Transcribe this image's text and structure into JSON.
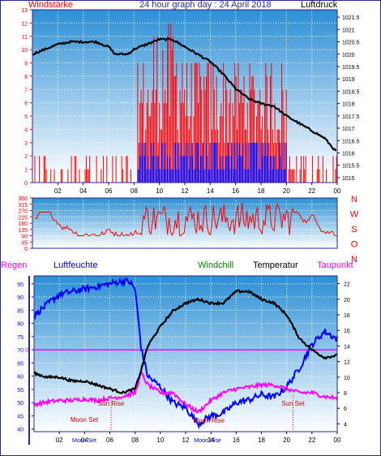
{
  "header": {
    "left": "Windstärke",
    "title": "24 hour graph day : 24 April 2018",
    "right": "Luftdruck"
  },
  "colors": {
    "wind_speed": "#ff0000",
    "wind_avg": "#0000ff",
    "pressure": "#000000",
    "direction": "#ff0000",
    "humidity": "#0000ff",
    "windchill": "#008000",
    "temperature": "#000000",
    "dewpoint": "#ff00ff",
    "rain": "#ff00ff",
    "frame": "#2a2a8a",
    "sky_top": "#2b8fd6",
    "sky_bottom": "#ffffff"
  },
  "mid_labels": {
    "compass": [
      "N",
      "W",
      "S",
      "O",
      "N"
    ]
  },
  "bottom_header": {
    "rain": "Regen",
    "humidity": "Luftfeuchte",
    "windchill": "Windchill",
    "temperature": "Temperatur",
    "dewpoint": "Taupunkt"
  },
  "annotations": {
    "sun_rise": "Sun Rise",
    "sun_set": "Sun Set",
    "moon_set": "Moon Set",
    "moon_rise": "Moon Rise",
    "moon_set_axis": "Moon Set",
    "moon_rise_axis": "Moon Rise"
  },
  "chart_data": [
    {
      "type": "line",
      "title": "24 hour graph day : 24 April 2018",
      "x_ticks": [
        "02",
        "04",
        "06",
        "08",
        "10",
        "12",
        "14",
        "16",
        "18",
        "20",
        "22",
        "00"
      ],
      "y_left": {
        "label": "Windstärke",
        "ticks": [
          0,
          1,
          2,
          3,
          4,
          5,
          6,
          7,
          8,
          9,
          10,
          11,
          12,
          13
        ],
        "lim": [
          0,
          13
        ]
      },
      "y_right": {
        "label": "Luftdruck",
        "ticks": [
          1015,
          1015.5,
          1016,
          1016.5,
          1017,
          1017.5,
          1018,
          1018.5,
          1019,
          1019.5,
          1020,
          1020.5,
          1021,
          1021.5
        ],
        "lim": [
          1014.8,
          1021.8
        ]
      },
      "series": [
        {
          "name": "Luftdruck",
          "axis": "right",
          "x": [
            0,
            1,
            2,
            3,
            4,
            5,
            6,
            6.5,
            7,
            7.5,
            8,
            9,
            10,
            11,
            12,
            13,
            14,
            15,
            16,
            17,
            18,
            19,
            20,
            21,
            22,
            23,
            24
          ],
          "y": [
            1020,
            1020.2,
            1020.4,
            1020.5,
            1020.5,
            1020.5,
            1020.3,
            1020,
            1020,
            1020,
            1020.2,
            1020.4,
            1020.6,
            1020.6,
            1020.3,
            1020,
            1019.7,
            1019.2,
            1018.6,
            1018.2,
            1018,
            1017.9,
            1017.5,
            1017.2,
            1016.9,
            1016.6,
            1016
          ]
        }
      ],
      "wind_activity_hours": [
        8.5,
        20
      ]
    },
    {
      "type": "scatter",
      "title": "",
      "y_left": {
        "ticks": [
          0,
          45,
          90,
          135,
          180,
          225,
          270,
          315,
          360
        ],
        "lim": [
          0,
          360
        ]
      },
      "y_right": {
        "ticks": [
          "N",
          "W",
          "S",
          "O",
          "N"
        ]
      },
      "series": [
        {
          "name": "Windrichtung",
          "typical_range": [
            90,
            300
          ]
        }
      ]
    },
    {
      "type": "line",
      "title": "",
      "x_ticks": [
        "02",
        "04",
        "06",
        "08",
        "10",
        "12",
        "14",
        "16",
        "18",
        "20",
        "22",
        "00"
      ],
      "y_left": {
        "label": "Luftfeuchte",
        "ticks": [
          40,
          45,
          50,
          55,
          60,
          65,
          70,
          75,
          80,
          85,
          90,
          95
        ],
        "lim": [
          39,
          98
        ]
      },
      "y_rain": {
        "label": "Regen",
        "ticks": [
          0
        ]
      },
      "y_right": {
        "label": "Temperatur",
        "ticks": [
          4,
          6,
          8,
          10,
          12,
          14,
          16,
          18,
          20,
          22
        ],
        "lim": [
          3,
          23
        ]
      },
      "series": [
        {
          "name": "Luftfeuchte",
          "axis": "left",
          "x": [
            0,
            1,
            2,
            3,
            4,
            5,
            6,
            7,
            7.5,
            8,
            8.5,
            9,
            10,
            11,
            12,
            13,
            14,
            15,
            16,
            17,
            18,
            19,
            20,
            21,
            22,
            23,
            24
          ],
          "y": [
            83,
            87,
            91,
            92,
            93,
            94,
            95,
            96,
            96,
            93,
            70,
            60,
            56,
            50,
            48,
            42,
            45,
            46,
            50,
            51,
            53,
            52,
            56,
            63,
            72,
            77,
            74
          ]
        },
        {
          "name": "Temperatur",
          "axis": "right",
          "x": [
            0,
            1,
            2,
            3,
            4,
            5,
            6,
            7,
            8,
            8.5,
            9,
            10,
            11,
            12,
            13,
            14,
            15,
            16,
            17,
            18,
            19,
            20,
            21,
            22,
            23,
            24
          ],
          "y": [
            10.5,
            10,
            10,
            9.5,
            9.5,
            9,
            8.5,
            8,
            8.5,
            11,
            14,
            16.5,
            18.5,
            19.5,
            20,
            19.5,
            19.5,
            21,
            21,
            20,
            19.5,
            18,
            15,
            13.5,
            12.5,
            12.8
          ]
        },
        {
          "name": "Taupunkt",
          "axis": "right",
          "x": [
            0,
            1,
            2,
            3,
            4,
            5,
            6,
            7,
            8,
            8.5,
            9,
            10,
            11,
            12,
            13,
            14,
            15,
            16,
            17,
            18,
            19,
            20,
            21,
            22,
            23,
            24
          ],
          "y": [
            6.5,
            6.8,
            7,
            7,
            7.2,
            7,
            7.3,
            7.5,
            8,
            10.5,
            9,
            8,
            8,
            6.5,
            5.5,
            7,
            8,
            8.5,
            8.7,
            9,
            9,
            8.5,
            8,
            8,
            7.5,
            7.3
          ]
        },
        {
          "name": "Regen",
          "axis": "rain",
          "x": [
            0,
            24
          ],
          "y": [
            0,
            0
          ]
        }
      ]
    }
  ]
}
